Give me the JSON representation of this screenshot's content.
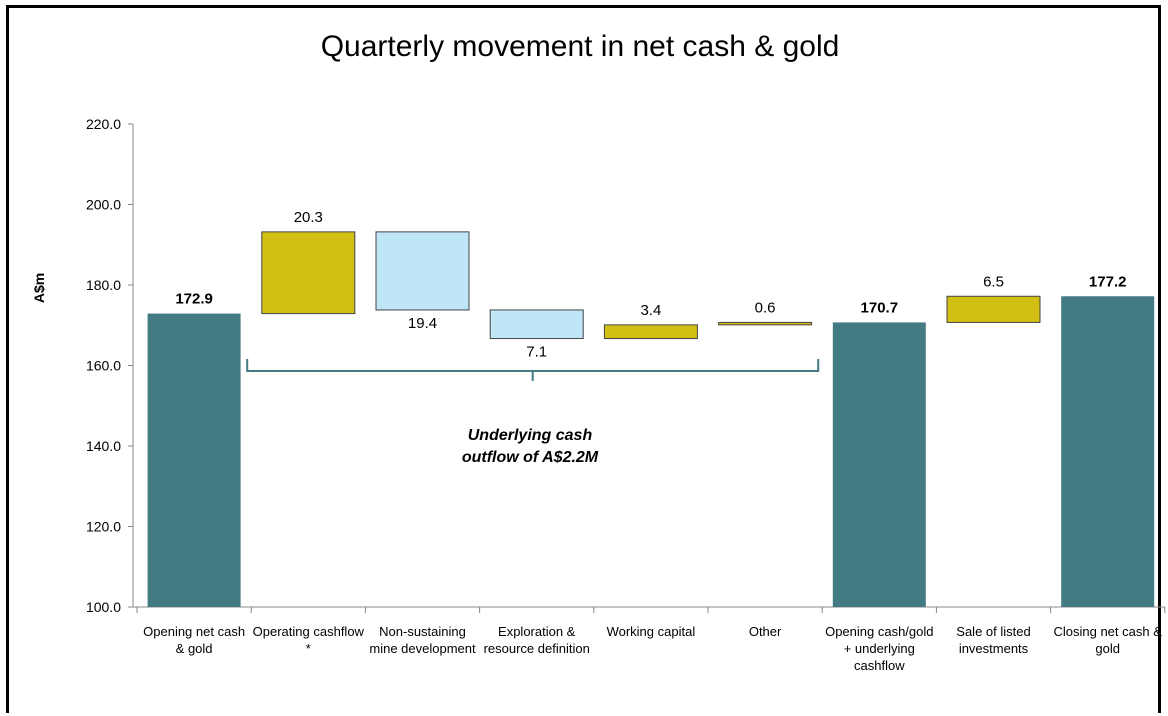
{
  "chart_data": {
    "type": "bar",
    "subtype": "waterfall",
    "title": "Quarterly movement in net cash & gold",
    "ylabel": "A$m",
    "ylim": [
      100,
      220
    ],
    "yticks": [
      "100.0",
      "120.0",
      "140.0",
      "160.0",
      "180.0",
      "200.0",
      "220.0"
    ],
    "grid": false,
    "categories": [
      [
        "Opening net cash",
        "& gold"
      ],
      [
        "Operating cashflow",
        "*"
      ],
      [
        "Non-sustaining",
        "mine development"
      ],
      [
        "Exploration &",
        "resource definition"
      ],
      [
        "Working capital"
      ],
      [
        "Other"
      ],
      [
        "Opening cash/gold",
        "+ underlying",
        "cashflow"
      ],
      [
        "Sale of listed",
        "investments"
      ],
      [
        "Closing net cash &",
        "gold"
      ]
    ],
    "bars": [
      {
        "kind": "total",
        "low": 100,
        "high": 172.9,
        "label": "172.9",
        "label_pos": "top"
      },
      {
        "kind": "increase",
        "low": 172.9,
        "high": 193.2,
        "label": "20.3",
        "label_pos": "top"
      },
      {
        "kind": "decrease",
        "low": 173.8,
        "high": 193.2,
        "label": "19.4",
        "label_pos": "bottom"
      },
      {
        "kind": "decrease",
        "low": 166.7,
        "high": 173.8,
        "label": "7.1",
        "label_pos": "bottom"
      },
      {
        "kind": "increase",
        "low": 166.7,
        "high": 170.1,
        "label": "3.4",
        "label_pos": "top"
      },
      {
        "kind": "increase",
        "low": 170.1,
        "high": 170.7,
        "label": "0.6",
        "label_pos": "top"
      },
      {
        "kind": "total",
        "low": 100,
        "high": 170.7,
        "label": "170.7",
        "label_pos": "top"
      },
      {
        "kind": "increase",
        "low": 170.7,
        "high": 177.2,
        "label": "6.5",
        "label_pos": "top"
      },
      {
        "kind": "total",
        "low": 100,
        "high": 177.2,
        "label": "177.2",
        "label_pos": "top"
      }
    ],
    "colors": {
      "total": "#437b83",
      "increase": "#d2bf14",
      "decrease": "#bfe6f7",
      "edge": "#444444",
      "bracket": "#437b83"
    },
    "annotation": {
      "lines": [
        "Underlying cash",
        "outflow of A$2.2M"
      ],
      "bracket_from_category": 1,
      "bracket_to_category": 5
    }
  }
}
